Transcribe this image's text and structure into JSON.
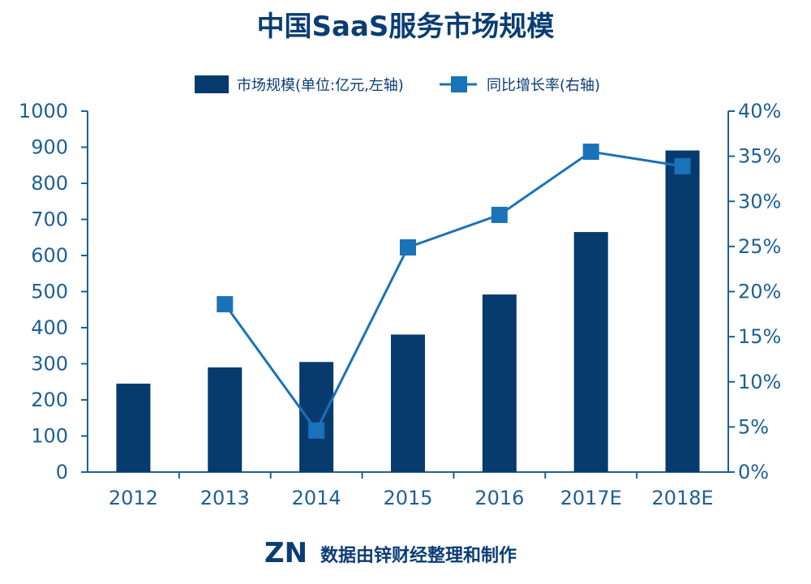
{
  "chart_data": {
    "type": "bar+line",
    "title": "中国SaaS服务市场规模",
    "categories": [
      "2012",
      "2013",
      "2014",
      "2015",
      "2016",
      "2017E",
      "2018E"
    ],
    "series": [
      {
        "name": "市场规模(单位:亿元,左轴)",
        "type": "bar",
        "axis": "left",
        "values": [
          245,
          290,
          305,
          381,
          492,
          665,
          891
        ]
      },
      {
        "name": "同比增长率(右轴)",
        "type": "line",
        "axis": "right",
        "values": [
          null,
          18.6,
          4.6,
          24.9,
          28.5,
          35.5,
          33.9
        ]
      }
    ],
    "y_left": {
      "ylim": [
        0,
        1000
      ],
      "ticks": [
        0,
        100,
        200,
        300,
        400,
        500,
        600,
        700,
        800,
        900,
        1000
      ]
    },
    "y_right": {
      "ylim": [
        0,
        40
      ],
      "ticks": [
        0,
        5,
        10,
        15,
        20,
        25,
        30,
        35,
        40
      ],
      "tick_labels": [
        "0%",
        "5%",
        "10%",
        "15%",
        "20%",
        "25%",
        "30%",
        "35%",
        "40%"
      ]
    },
    "grid": false,
    "legend_position": "top"
  },
  "footer": {
    "logo_text": "ZN",
    "note": "数据由锌财经整理和制作"
  },
  "colors": {
    "bar": "#073b6e",
    "line": "#1a72b8",
    "marker": "#1a72b8",
    "title": "#0a3d73",
    "axis": "#1f5f94",
    "tick_text": "#1f5f94"
  }
}
